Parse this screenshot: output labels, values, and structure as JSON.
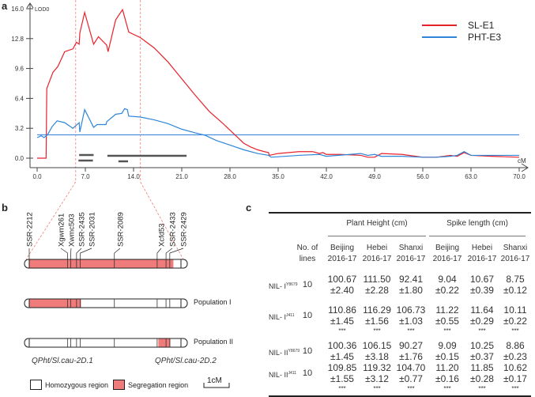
{
  "panels": {
    "a": "a",
    "b": "b",
    "c": "c"
  },
  "chart_data": {
    "type": "line",
    "ylabel": "LOD0",
    "xlabel": "cM",
    "xlim": [
      0,
      70
    ],
    "ylim": [
      0,
      16
    ],
    "xticks": [
      "0.0",
      "7.0",
      "14.0",
      "21.0",
      "28.0",
      "35.0",
      "42.0",
      "49.0",
      "56.0",
      "63.0",
      "70.0"
    ],
    "yticks": [
      "0.0",
      "3.2",
      "6.4",
      "9.6",
      "12.8",
      "16.0"
    ],
    "threshold": 2.5,
    "legend_position": "top-right",
    "series": [
      {
        "name": "SL-E1",
        "color": "#e8222c",
        "x": [
          0,
          1.3,
          1.4,
          2.3,
          3.0,
          4.0,
          5.2,
          5.7,
          6.1,
          6.2,
          6.9,
          8.2,
          8.9,
          10.1,
          10.3,
          11.4,
          12.4,
          13.3,
          15,
          17,
          19,
          21,
          23,
          25,
          27,
          28,
          29,
          30,
          31,
          32,
          33,
          33.6,
          33.7,
          35,
          38,
          40,
          41,
          41.5,
          42,
          44,
          47,
          48,
          49,
          50,
          53,
          56,
          58,
          60,
          61,
          62,
          63,
          66,
          70
        ],
        "y": [
          0,
          0,
          7.45,
          9.2,
          9.8,
          11.4,
          11.7,
          12.4,
          12.2,
          13.4,
          15.6,
          12.2,
          13.0,
          12.1,
          11.4,
          14.8,
          15.9,
          13.5,
          12.9,
          11.8,
          10.3,
          8.5,
          6.7,
          5.0,
          3.7,
          3.0,
          2.3,
          1.6,
          1.2,
          0.9,
          0.7,
          0.6,
          0.3,
          0.5,
          0.7,
          0.7,
          0.5,
          0.6,
          0.4,
          0.4,
          0.3,
          0.1,
          0.1,
          0.5,
          0.4,
          0.1,
          0.1,
          0.3,
          0.2,
          0.6,
          0.3,
          0.2,
          0.1
        ]
      },
      {
        "name": "PHT-E3",
        "color": "#2f86d8",
        "x": [
          0,
          0.6,
          1.0,
          1.5,
          2.2,
          2.9,
          4.0,
          5.2,
          6.1,
          6.2,
          6.9,
          8.2,
          8.7,
          9.0,
          10.0,
          10.1,
          11.4,
          12.3,
          12.7,
          13.1,
          13.3,
          15,
          17,
          19,
          21,
          23,
          24.4,
          26,
          28,
          30,
          32,
          33.6,
          34,
          38,
          41,
          42,
          47,
          48,
          49,
          50,
          53,
          56,
          58,
          60,
          61,
          62,
          63,
          66,
          70
        ],
        "y": [
          2.2,
          2.4,
          2.2,
          2.5,
          3.4,
          4.0,
          3.8,
          3.2,
          3.8,
          2.8,
          5.2,
          3.3,
          3.6,
          3.6,
          3.6,
          3.9,
          4.7,
          4.8,
          5.3,
          5.2,
          4.5,
          4.4,
          4.1,
          3.7,
          3.1,
          2.7,
          2.45,
          1.9,
          1.4,
          0.9,
          0.5,
          0.3,
          0.1,
          0.3,
          0.4,
          0.2,
          0.5,
          0.3,
          0.4,
          0.2,
          0.2,
          0.1,
          0.1,
          0.2,
          0.3,
          0.7,
          0.3,
          0.3,
          0.3
        ]
      }
    ],
    "intervals_cM": [
      [
        6.1,
        8.2
      ],
      [
        6.0,
        8.1
      ],
      [
        10.2,
        21.7
      ],
      [
        11.8,
        13.2
      ]
    ],
    "zoom_region_cM": [
      5.6,
      15.0
    ]
  },
  "panel_b": {
    "markers": [
      {
        "name": "SSR-2212",
        "pos": 0
      },
      {
        "name": "Xgwm261",
        "pos": 0.256
      },
      {
        "name": "Xwmc503",
        "pos": 0.276
      },
      {
        "name": "SSR-2435",
        "pos": 0.315
      },
      {
        "name": "SSR-2031",
        "pos": 0.34
      },
      {
        "name": "SSR-2089",
        "pos": 0.567
      },
      {
        "name": "Xcfd53",
        "pos": 0.852
      },
      {
        "name": "SSR-2433",
        "pos": 0.911
      },
      {
        "name": "SSR-2429",
        "pos": 0.936
      }
    ],
    "segregation_color": "#f07b7b",
    "population_1": {
      "label": "Population I",
      "segregation": [
        0,
        0.345
      ]
    },
    "population_2": {
      "label": "Population II",
      "segregation": [
        0.86,
        0.94
      ]
    },
    "qtl_1": "QPht/Sl.cau-2D.1",
    "qtl_2": "QPht/Sl.cau-2D.2",
    "legend": {
      "homozygous": "Homozygous region",
      "segregation": "Segregation region",
      "scale": "1cM"
    }
  },
  "panel_c": {
    "group_headers": [
      "Plant Height (cm)",
      "Spike length (cm)"
    ],
    "lines_header": [
      "No. of",
      "lines"
    ],
    "columns": [
      [
        "Beijing",
        "2016-17"
      ],
      [
        "Hebei",
        "2016-17"
      ],
      [
        "Shanxi",
        "2016-17"
      ],
      [
        "Beijing",
        "2016-17"
      ],
      [
        "Hebei",
        "2016-17"
      ],
      [
        "Shanxi",
        "2016-17"
      ]
    ],
    "rows": [
      {
        "label": "NIL- I",
        "sup": "Y8679",
        "lines": "10",
        "mean": [
          "100.67",
          "111.50",
          "92.41",
          "9.04",
          "10.67",
          "8.75"
        ],
        "sd": [
          "±2.40",
          "±2.28",
          "±1.80",
          "±0.22",
          "±0.39",
          "±0.12"
        ],
        "sig": ""
      },
      {
        "label": "NIL- I",
        "sup": "J411",
        "lines": "10",
        "mean": [
          "110.86",
          "116.29",
          "106.73",
          "11.22",
          "11.64",
          "10.11"
        ],
        "sd": [
          "±1.45",
          "±1.56",
          "±1.03",
          "±0.55",
          "±0.29",
          "±0.22"
        ],
        "sig": "***"
      },
      {
        "label": "NIL- II",
        "sup": "Y8679",
        "lines": "10",
        "mean": [
          "100.36",
          "106.15",
          "90.27",
          "9.09",
          "10.25",
          "8.86"
        ],
        "sd": [
          "±1.45",
          "±3.18",
          "±1.76",
          "±0.15",
          "±0.37",
          "±0.23"
        ],
        "sig": ""
      },
      {
        "label": "NIL- II",
        "sup": "J411",
        "lines": "10",
        "mean": [
          "109.85",
          "119.32",
          "104.70",
          "11.20",
          "11.85",
          "10.62"
        ],
        "sd": [
          "±1.55",
          "±3.12",
          "±0.77",
          "±0.16",
          "±0.28",
          "±0.17"
        ],
        "sig": "***"
      }
    ]
  }
}
